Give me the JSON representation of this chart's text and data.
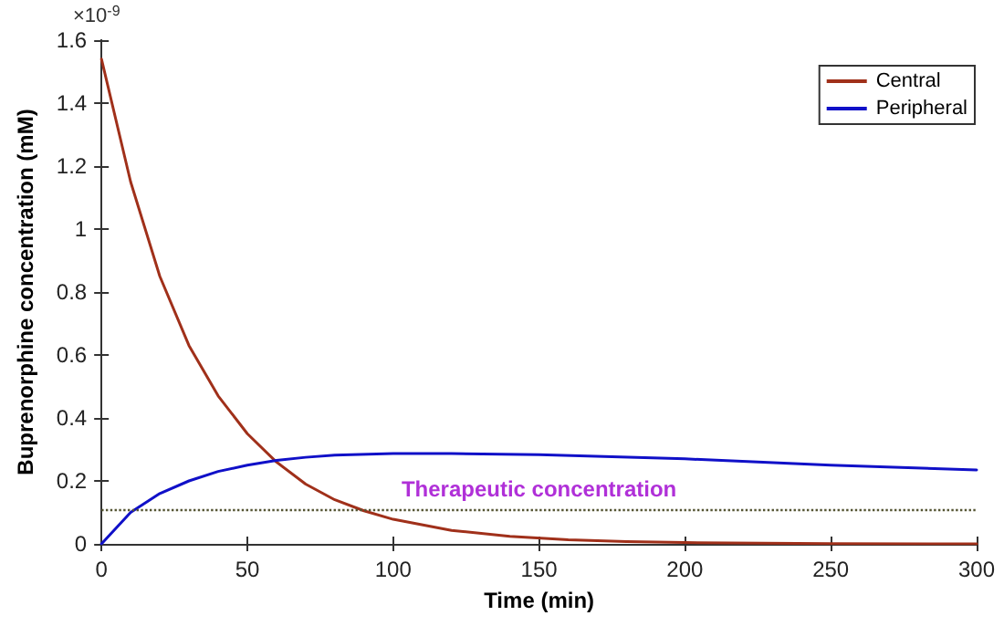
{
  "chart_data": {
    "type": "line",
    "xlabel": "Time (min)",
    "ylabel": "Buprenorphine concentration (mM)",
    "annotations": [
      "×10$^{-9}$"
    ],
    "xlim": [
      0,
      300
    ],
    "xticks": [
      0,
      50,
      100,
      150,
      200,
      250,
      300
    ],
    "ylim": [
      0,
      1.6
    ],
    "yticks": [
      0,
      0.2,
      0.4,
      0.6,
      0.8,
      1,
      1.2,
      1.4,
      1.6
    ],
    "grid": false,
    "legend": "top right",
    "marker": "none",
    "line_style": "solid",
    "series": [
      {
        "name": "Central",
        "color": "#a0301a",
        "x": [
          0,
          10,
          20,
          30,
          40,
          50,
          60,
          70,
          80,
          90,
          100,
          120,
          140,
          160,
          180,
          200,
          250,
          300
        ],
        "values": [
          1.54,
          1.15,
          0.85,
          0.63,
          0.47,
          0.35,
          0.26,
          0.19,
          0.14,
          0.105,
          0.078,
          0.043,
          0.024,
          0.013,
          0.007,
          0.004,
          0.001,
          0
        ]
      },
      {
        "name": "Peripheral",
        "color": "#1010c8",
        "x": [
          0,
          10,
          20,
          30,
          40,
          50,
          60,
          70,
          80,
          100,
          120,
          150,
          200,
          250,
          300
        ],
        "values": [
          0,
          0.1,
          0.16,
          0.2,
          0.23,
          0.25,
          0.265,
          0.275,
          0.282,
          0.287,
          0.287,
          0.283,
          0.27,
          0.25,
          0.235
        ]
      }
    ],
    "ref_lines": [
      {
        "axis": "y",
        "value": 0.11,
        "label": "Therapeutic concentration",
        "color": "#555533",
        "line_style": "dotted"
      }
    ]
  }
}
